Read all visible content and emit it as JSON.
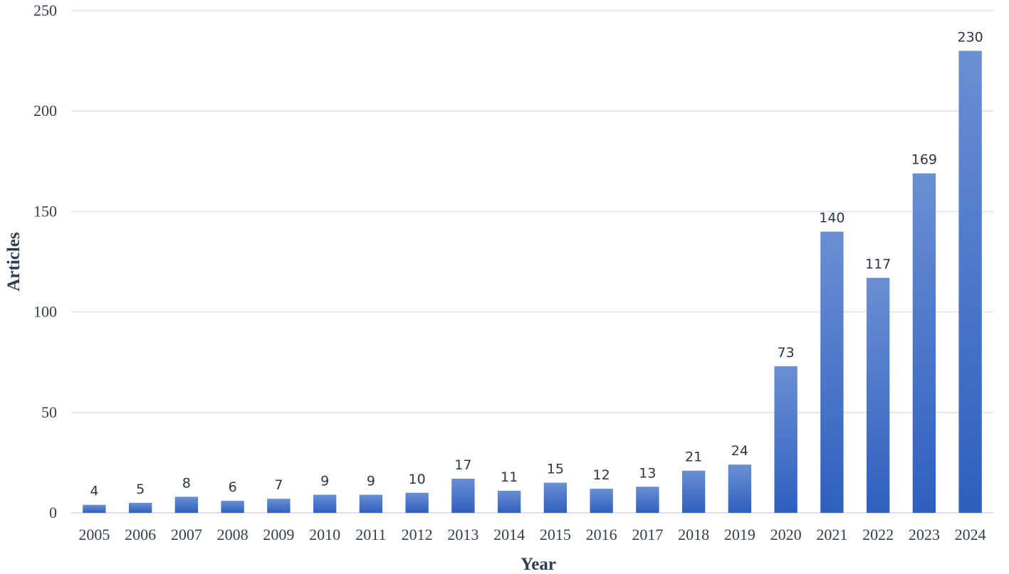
{
  "chart_data": {
    "type": "bar",
    "title": "",
    "xlabel": "Year",
    "ylabel": "Articles",
    "ylim": [
      0,
      250
    ],
    "yticks": [
      0,
      50,
      100,
      150,
      200,
      250
    ],
    "grid": true,
    "legend": "none",
    "categories": [
      "2005",
      "2006",
      "2007",
      "2008",
      "2009",
      "2010",
      "2011",
      "2012",
      "2013",
      "2014",
      "2015",
      "2016",
      "2017",
      "2018",
      "2019",
      "2020",
      "2021",
      "2022",
      "2023",
      "2024"
    ],
    "series": [
      {
        "values": [
          4,
          5,
          8,
          6,
          7,
          9,
          9,
          10,
          17,
          11,
          15,
          12,
          13,
          21,
          24,
          73,
          140,
          117,
          169,
          230
        ]
      }
    ],
    "colors": {
      "bar_top": "#6a8fd3",
      "bar_bottom": "#2f5fbf"
    }
  }
}
